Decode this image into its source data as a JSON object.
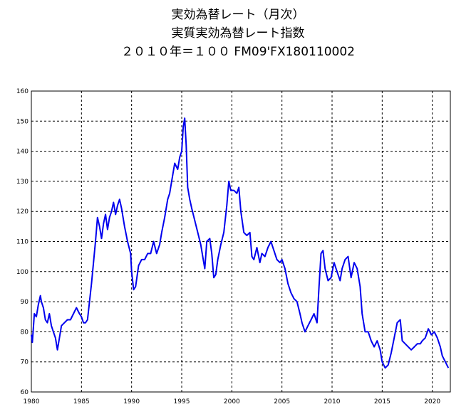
{
  "title_lines": [
    "実効為替レート（月次）",
    "実質実効為替レート指数",
    "２０１０年＝１００ FM09'FX180110002"
  ],
  "colors": {
    "series": "#0000ee",
    "grid": "#000000",
    "background": "#ffffff"
  },
  "chart_data": {
    "type": "line",
    "title": "実効為替レート（月次）",
    "subtitle": "実質実効為替レート指数 ２０１０年＝１００ FM09'FX180110002",
    "xlabel": "",
    "ylabel": "",
    "xlim": [
      1980,
      2021.8
    ],
    "ylim": [
      60,
      160
    ],
    "x_ticks": [
      1980,
      1985,
      1990,
      1995,
      2000,
      2005,
      2010,
      2015,
      2020
    ],
    "y_ticks": [
      60,
      70,
      80,
      90,
      100,
      110,
      120,
      130,
      140,
      150,
      160
    ],
    "grid": true,
    "legend": "none",
    "series": [
      {
        "name": "",
        "points": [
          [
            1980.0,
            79
          ],
          [
            1980.1,
            76.5
          ],
          [
            1980.3,
            86
          ],
          [
            1980.5,
            85
          ],
          [
            1980.7,
            89
          ],
          [
            1980.9,
            92
          ],
          [
            1981.0,
            90
          ],
          [
            1981.2,
            88
          ],
          [
            1981.4,
            84
          ],
          [
            1981.6,
            83
          ],
          [
            1981.8,
            86
          ],
          [
            1982.0,
            82
          ],
          [
            1982.2,
            80
          ],
          [
            1982.4,
            78
          ],
          [
            1982.6,
            74
          ],
          [
            1982.8,
            78
          ],
          [
            1983.0,
            82
          ],
          [
            1983.3,
            83
          ],
          [
            1983.6,
            84
          ],
          [
            1983.9,
            84
          ],
          [
            1984.2,
            86
          ],
          [
            1984.5,
            88
          ],
          [
            1984.8,
            86
          ],
          [
            1985.0,
            85
          ],
          [
            1985.2,
            83
          ],
          [
            1985.4,
            83
          ],
          [
            1985.6,
            84
          ],
          [
            1985.8,
            90
          ],
          [
            1986.0,
            96
          ],
          [
            1986.2,
            103
          ],
          [
            1986.4,
            110
          ],
          [
            1986.6,
            118
          ],
          [
            1986.8,
            115
          ],
          [
            1987.0,
            111
          ],
          [
            1987.2,
            116
          ],
          [
            1987.4,
            119
          ],
          [
            1987.6,
            114
          ],
          [
            1987.8,
            118
          ],
          [
            1988.0,
            120
          ],
          [
            1988.2,
            123
          ],
          [
            1988.4,
            119
          ],
          [
            1988.6,
            122
          ],
          [
            1988.8,
            124
          ],
          [
            1989.0,
            121
          ],
          [
            1989.3,
            115
          ],
          [
            1989.6,
            110
          ],
          [
            1989.9,
            106
          ],
          [
            1990.0,
            100
          ],
          [
            1990.2,
            94
          ],
          [
            1990.4,
            95
          ],
          [
            1990.7,
            102
          ],
          [
            1991.0,
            104
          ],
          [
            1991.3,
            104
          ],
          [
            1991.6,
            106
          ],
          [
            1991.9,
            106
          ],
          [
            1992.2,
            110
          ],
          [
            1992.5,
            106
          ],
          [
            1992.8,
            109
          ],
          [
            1993.0,
            113
          ],
          [
            1993.3,
            118
          ],
          [
            1993.6,
            124
          ],
          [
            1993.8,
            126
          ],
          [
            1994.0,
            130
          ],
          [
            1994.3,
            136
          ],
          [
            1994.6,
            134
          ],
          [
            1994.8,
            138
          ],
          [
            1995.0,
            140
          ],
          [
            1995.15,
            148
          ],
          [
            1995.3,
            151
          ],
          [
            1995.45,
            142
          ],
          [
            1995.6,
            128
          ],
          [
            1995.8,
            124
          ],
          [
            1996.0,
            121
          ],
          [
            1996.3,
            117
          ],
          [
            1996.6,
            113
          ],
          [
            1996.9,
            109
          ],
          [
            1997.1,
            105
          ],
          [
            1997.3,
            101
          ],
          [
            1997.5,
            110
          ],
          [
            1997.8,
            111
          ],
          [
            1998.0,
            106
          ],
          [
            1998.2,
            98
          ],
          [
            1998.4,
            99
          ],
          [
            1998.6,
            104
          ],
          [
            1998.9,
            109
          ],
          [
            1999.2,
            113
          ],
          [
            1999.5,
            122
          ],
          [
            1999.7,
            130
          ],
          [
            1999.9,
            127
          ],
          [
            2000.2,
            127
          ],
          [
            2000.5,
            126
          ],
          [
            2000.7,
            128
          ],
          [
            2000.9,
            120
          ],
          [
            2001.2,
            113
          ],
          [
            2001.5,
            112
          ],
          [
            2001.8,
            113
          ],
          [
            2002.0,
            105
          ],
          [
            2002.2,
            104
          ],
          [
            2002.5,
            108
          ],
          [
            2002.8,
            103
          ],
          [
            2003.0,
            106
          ],
          [
            2003.3,
            105
          ],
          [
            2003.6,
            108
          ],
          [
            2003.9,
            110
          ],
          [
            2004.2,
            107
          ],
          [
            2004.5,
            104
          ],
          [
            2004.8,
            103
          ],
          [
            2005.0,
            104
          ],
          [
            2005.3,
            101
          ],
          [
            2005.6,
            96
          ],
          [
            2005.9,
            93
          ],
          [
            2006.2,
            91
          ],
          [
            2006.5,
            90
          ],
          [
            2006.8,
            86
          ],
          [
            2007.0,
            83
          ],
          [
            2007.3,
            80
          ],
          [
            2007.6,
            82
          ],
          [
            2007.9,
            84
          ],
          [
            2008.2,
            86
          ],
          [
            2008.5,
            83
          ],
          [
            2008.7,
            95
          ],
          [
            2008.9,
            106
          ],
          [
            2009.1,
            107
          ],
          [
            2009.3,
            101
          ],
          [
            2009.6,
            97
          ],
          [
            2009.9,
            98
          ],
          [
            2010.2,
            103
          ],
          [
            2010.5,
            100
          ],
          [
            2010.8,
            97
          ],
          [
            2011.0,
            101
          ],
          [
            2011.3,
            104
          ],
          [
            2011.6,
            105
          ],
          [
            2011.9,
            98
          ],
          [
            2012.2,
            103
          ],
          [
            2012.5,
            101
          ],
          [
            2012.8,
            95
          ],
          [
            2013.0,
            86
          ],
          [
            2013.3,
            80
          ],
          [
            2013.6,
            80
          ],
          [
            2013.9,
            77
          ],
          [
            2014.2,
            75
          ],
          [
            2014.5,
            77
          ],
          [
            2014.8,
            74
          ],
          [
            2015.0,
            70
          ],
          [
            2015.3,
            68
          ],
          [
            2015.6,
            69
          ],
          [
            2015.9,
            73
          ],
          [
            2016.2,
            78
          ],
          [
            2016.5,
            83
          ],
          [
            2016.8,
            84
          ],
          [
            2017.0,
            77
          ],
          [
            2017.3,
            76
          ],
          [
            2017.6,
            75
          ],
          [
            2017.9,
            74
          ],
          [
            2018.2,
            75
          ],
          [
            2018.5,
            76
          ],
          [
            2018.8,
            76
          ],
          [
            2019.0,
            77
          ],
          [
            2019.3,
            78
          ],
          [
            2019.6,
            81
          ],
          [
            2019.9,
            79
          ],
          [
            2020.2,
            80
          ],
          [
            2020.5,
            78
          ],
          [
            2020.8,
            75
          ],
          [
            2021.0,
            72
          ],
          [
            2021.3,
            70
          ],
          [
            2021.6,
            68
          ]
        ]
      }
    ]
  }
}
